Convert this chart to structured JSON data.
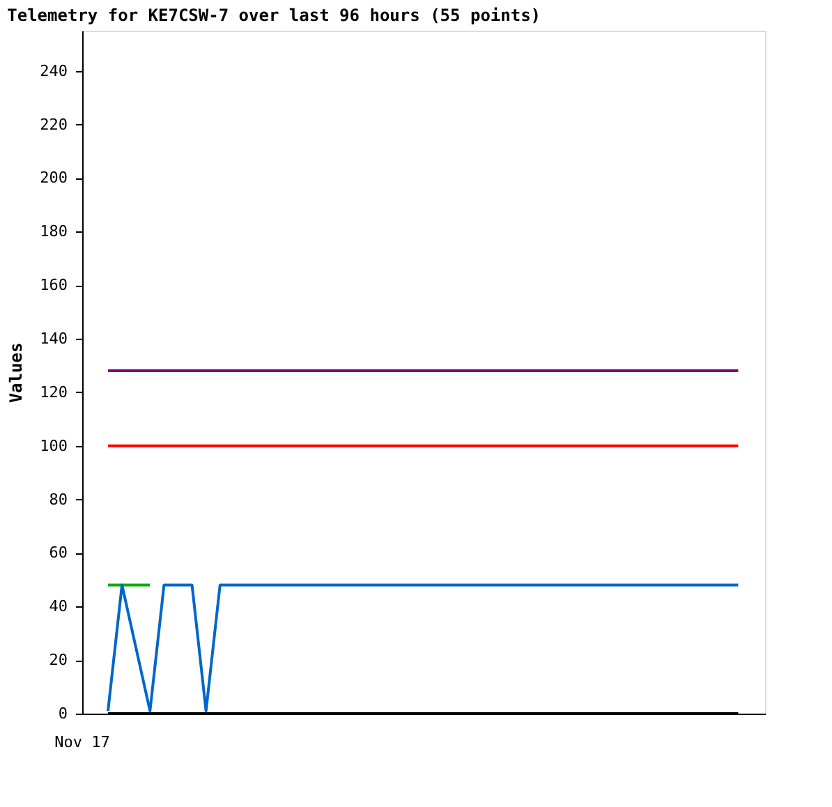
{
  "chart_data": {
    "type": "line",
    "title": "Telemetry for KE7CSW-7 over last 96 hours (55 points)",
    "ylabel": "Values",
    "annotations": [
      "Nov 17"
    ],
    "tick_labels": "y",
    "categories": [
      null,
      null,
      null,
      null,
      null,
      null,
      null,
      null,
      null,
      null,
      null,
      null,
      null,
      null,
      null,
      null,
      null,
      null,
      null,
      null,
      null,
      null,
      null,
      null,
      null,
      null,
      null,
      null,
      null,
      null,
      null,
      null,
      null,
      null,
      null,
      null,
      null,
      null,
      null,
      null,
      null,
      null,
      null,
      null,
      null,
      null
    ],
    "ylim": [
      0,
      255
    ],
    "yticks": [
      0,
      20,
      40,
      60,
      80,
      100,
      120,
      140,
      160,
      180,
      200,
      220,
      240
    ],
    "marker": "none",
    "line_style": "solid",
    "series": [
      {
        "color": "#800080",
        "values": [
          128,
          128,
          128,
          128,
          128,
          128,
          128,
          128,
          128,
          128,
          128,
          128,
          128,
          128,
          128,
          128,
          128,
          128,
          128,
          128,
          128,
          128,
          128,
          128,
          128,
          128,
          128,
          128,
          128,
          128,
          128,
          128,
          128,
          128,
          128,
          128,
          128,
          128,
          128,
          128,
          128,
          128,
          128,
          128,
          128,
          128
        ]
      },
      {
        "color": "#ff0000",
        "values": [
          100,
          100,
          100,
          100,
          100,
          100,
          100,
          100,
          100,
          100,
          100,
          100,
          100,
          100,
          100,
          100,
          100,
          100,
          100,
          100,
          100,
          100,
          100,
          100,
          100,
          100,
          100,
          100,
          100,
          100,
          100,
          100,
          100,
          100,
          100,
          100,
          100,
          100,
          100,
          100,
          100,
          100,
          100,
          100,
          100,
          100
        ]
      },
      {
        "color": "#00b000",
        "values": [
          48,
          48,
          48,
          48,
          null,
          null,
          null,
          null,
          null,
          null,
          null,
          null,
          null,
          null,
          null,
          null,
          null,
          null,
          null,
          null,
          null,
          null,
          null,
          null,
          null,
          null,
          null,
          null,
          null,
          null,
          null,
          null,
          null,
          null,
          null,
          null,
          null,
          null,
          null,
          null,
          null,
          null,
          null,
          null,
          null,
          null
        ]
      },
      {
        "color": "#000000",
        "values": [
          0,
          0,
          0,
          0,
          0,
          0,
          0,
          0,
          0,
          0,
          0,
          0,
          0,
          0,
          0,
          0,
          0,
          0,
          0,
          0,
          0,
          0,
          0,
          0,
          0,
          0,
          0,
          0,
          0,
          0,
          0,
          0,
          0,
          0,
          0,
          0,
          0,
          0,
          0,
          0,
          0,
          0,
          0,
          0,
          0,
          0
        ]
      },
      {
        "color": "#0066cc",
        "values": [
          1,
          48,
          24.5,
          1,
          48,
          48,
          48,
          1,
          48,
          48,
          48,
          48,
          48,
          48,
          48,
          48,
          48,
          48,
          48,
          48,
          48,
          48,
          48,
          48,
          48,
          48,
          48,
          48,
          48,
          48,
          48,
          48,
          48,
          48,
          48,
          48,
          48,
          48,
          48,
          48,
          48,
          48,
          48,
          48,
          48,
          48
        ]
      }
    ]
  }
}
